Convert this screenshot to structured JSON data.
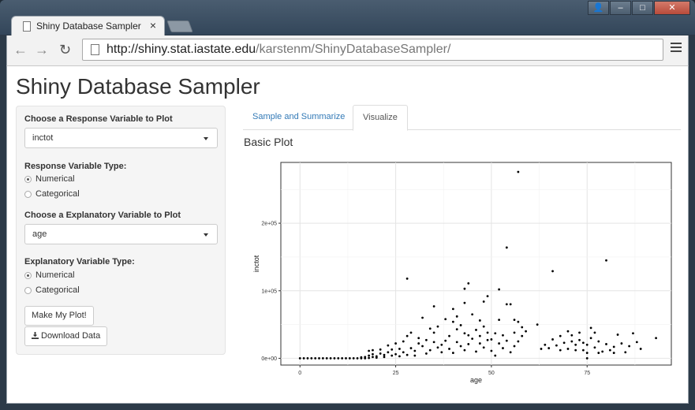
{
  "browser": {
    "tab_title": "Shiny Database Sampler",
    "tab_close": "×",
    "url_host": "http://shiny.stat.iastate.edu",
    "url_path": "/karstenm/ShinyDatabaseSampler/",
    "back": "←",
    "forward": "→",
    "reload": "↻",
    "minimize": "‒",
    "maximize": "□",
    "close": "✕",
    "profile": "👤"
  },
  "page": {
    "title": "Shiny Database Sampler"
  },
  "sidebar": {
    "response_label": "Choose a Response Variable to Plot",
    "response_value": "inctot",
    "response_type_label": "Response Variable Type:",
    "response_type_options": [
      "Numerical",
      "Categorical"
    ],
    "explanatory_label": "Choose a Explanatory Variable to Plot",
    "explanatory_value": "age",
    "explanatory_type_label": "Explanatory Variable Type:",
    "explanatory_type_options": [
      "Numerical",
      "Categorical"
    ],
    "make_plot_button": "Make My Plot!",
    "download_button": "Download Data"
  },
  "main": {
    "tabs": [
      "Sample and Summarize",
      "Visualize"
    ],
    "active_tab": "Visualize",
    "plot_title": "Basic Plot"
  },
  "chart_data": {
    "type": "scatter",
    "xlabel": "age",
    "ylabel": "inctot",
    "xlim": [
      -5,
      97
    ],
    "ylim": [
      -10000,
      290000
    ],
    "xticks": [
      0,
      25,
      50,
      75
    ],
    "xtick_labels": [
      "0",
      "25",
      "50",
      "75"
    ],
    "yticks": [
      0,
      100000,
      200000
    ],
    "ytick_labels": [
      "0e+00",
      "1e+05",
      "2e+05"
    ],
    "grid": true,
    "panel_background": "#ffffff",
    "point_color": "#000000",
    "points": [
      [
        0,
        0
      ],
      [
        1,
        0
      ],
      [
        2,
        0
      ],
      [
        3,
        0
      ],
      [
        4,
        0
      ],
      [
        5,
        0
      ],
      [
        6,
        0
      ],
      [
        7,
        0
      ],
      [
        8,
        0
      ],
      [
        9,
        0
      ],
      [
        10,
        0
      ],
      [
        11,
        0
      ],
      [
        12,
        0
      ],
      [
        13,
        0
      ],
      [
        14,
        0
      ],
      [
        15,
        0
      ],
      [
        16,
        0
      ],
      [
        16,
        1500
      ],
      [
        17,
        0
      ],
      [
        17,
        2000
      ],
      [
        18,
        500
      ],
      [
        18,
        4000
      ],
      [
        18,
        11000
      ],
      [
        19,
        2000
      ],
      [
        19,
        12000
      ],
      [
        19,
        6000
      ],
      [
        20,
        3000
      ],
      [
        20,
        1000
      ],
      [
        21,
        7000
      ],
      [
        21,
        13000
      ],
      [
        22,
        5000
      ],
      [
        22,
        2000
      ],
      [
        23,
        19000
      ],
      [
        23,
        9000
      ],
      [
        24,
        4000
      ],
      [
        24,
        13000
      ],
      [
        25,
        22000
      ],
      [
        25,
        6000
      ],
      [
        26,
        3000
      ],
      [
        26,
        14000
      ],
      [
        27,
        25000
      ],
      [
        27,
        9000
      ],
      [
        28,
        118000
      ],
      [
        28,
        5000
      ],
      [
        28,
        33000
      ],
      [
        29,
        15000
      ],
      [
        29,
        38000
      ],
      [
        30,
        11000
      ],
      [
        30,
        4000
      ],
      [
        31,
        22000
      ],
      [
        31,
        30000
      ],
      [
        32,
        60000
      ],
      [
        32,
        18000
      ],
      [
        33,
        7000
      ],
      [
        33,
        27000
      ],
      [
        34,
        44000
      ],
      [
        34,
        12000
      ],
      [
        35,
        77000
      ],
      [
        35,
        38000
      ],
      [
        35,
        24000
      ],
      [
        36,
        16000
      ],
      [
        36,
        47000
      ],
      [
        37,
        20000
      ],
      [
        37,
        9000
      ],
      [
        38,
        58000
      ],
      [
        38,
        26000
      ],
      [
        39,
        33000
      ],
      [
        39,
        14000
      ],
      [
        40,
        73000
      ],
      [
        40,
        54000
      ],
      [
        40,
        8000
      ],
      [
        41,
        62000
      ],
      [
        41,
        43000
      ],
      [
        41,
        24000
      ],
      [
        42,
        49000
      ],
      [
        42,
        18000
      ],
      [
        43,
        103000
      ],
      [
        43,
        82000
      ],
      [
        43,
        37000
      ],
      [
        43,
        12000
      ],
      [
        44,
        111000
      ],
      [
        44,
        34000
      ],
      [
        44,
        21000
      ],
      [
        45,
        65000
      ],
      [
        45,
        29000
      ],
      [
        46,
        42000
      ],
      [
        46,
        10000
      ],
      [
        47,
        56000
      ],
      [
        47,
        33000
      ],
      [
        47,
        22000
      ],
      [
        48,
        84000
      ],
      [
        48,
        47000
      ],
      [
        48,
        16000
      ],
      [
        49,
        92000
      ],
      [
        49,
        38000
      ],
      [
        49,
        27000
      ],
      [
        50,
        28000
      ],
      [
        50,
        11000
      ],
      [
        51,
        37000
      ],
      [
        51,
        4000
      ],
      [
        52,
        102000
      ],
      [
        52,
        57000
      ],
      [
        52,
        22000
      ],
      [
        53,
        34000
      ],
      [
        53,
        15000
      ],
      [
        54,
        164000
      ],
      [
        54,
        80000
      ],
      [
        54,
        26000
      ],
      [
        55,
        80000
      ],
      [
        55,
        9000
      ],
      [
        56,
        57000
      ],
      [
        56,
        38000
      ],
      [
        56,
        18000
      ],
      [
        57,
        276000
      ],
      [
        57,
        54000
      ],
      [
        57,
        25000
      ],
      [
        58,
        46000
      ],
      [
        58,
        33000
      ],
      [
        59,
        40000
      ],
      [
        62,
        50000
      ],
      [
        63,
        14000
      ],
      [
        64,
        20000
      ],
      [
        65,
        15000
      ],
      [
        66,
        129000
      ],
      [
        66,
        28000
      ],
      [
        67,
        19000
      ],
      [
        68,
        12000
      ],
      [
        68,
        33000
      ],
      [
        69,
        23000
      ],
      [
        70,
        40000
      ],
      [
        70,
        14000
      ],
      [
        71,
        34000
      ],
      [
        71,
        25000
      ],
      [
        72,
        20000
      ],
      [
        72,
        12000
      ],
      [
        73,
        27000
      ],
      [
        73,
        38000
      ],
      [
        74,
        12000
      ],
      [
        74,
        23000
      ],
      [
        75,
        8000
      ],
      [
        75,
        20000
      ],
      [
        75,
        0
      ],
      [
        76,
        45000
      ],
      [
        76,
        30000
      ],
      [
        77,
        38000
      ],
      [
        77,
        16000
      ],
      [
        78,
        25000
      ],
      [
        78,
        8000
      ],
      [
        79,
        10000
      ],
      [
        80,
        145000
      ],
      [
        80,
        21000
      ],
      [
        81,
        12000
      ],
      [
        82,
        8000
      ],
      [
        82,
        17000
      ],
      [
        83,
        35000
      ],
      [
        84,
        22000
      ],
      [
        85,
        9000
      ],
      [
        86,
        18000
      ],
      [
        87,
        37000
      ],
      [
        88,
        24000
      ],
      [
        89,
        14000
      ],
      [
        93,
        30000
      ]
    ]
  }
}
